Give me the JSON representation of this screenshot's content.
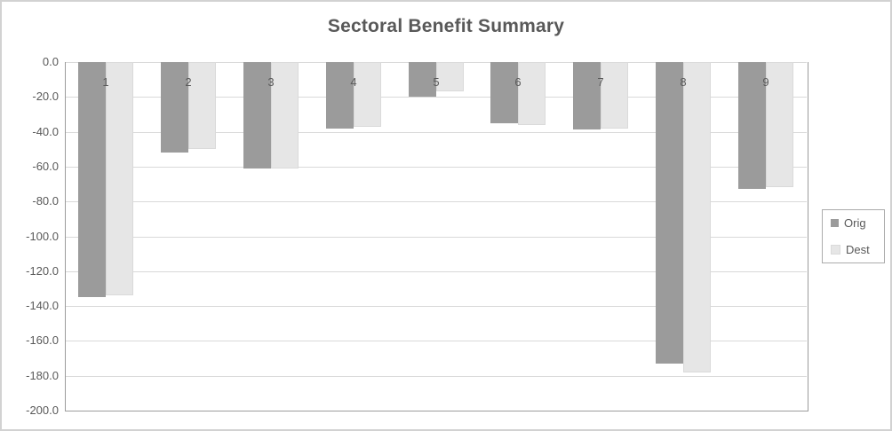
{
  "chart_data": {
    "type": "bar",
    "title": "Sectoral Benefit Summary",
    "categories": [
      "1",
      "2",
      "3",
      "4",
      "5",
      "6",
      "7",
      "8",
      "9"
    ],
    "series": [
      {
        "name": "Orig",
        "color": "#9b9b9b",
        "values": [
          -135,
          -52,
          -61,
          -38,
          -20,
          -35,
          -38.5,
          -173,
          -73
        ]
      },
      {
        "name": "Dest",
        "color": "#e6e6e6",
        "values": [
          -134,
          -50,
          -61,
          -37,
          -17,
          -36,
          -38,
          -178,
          -72
        ]
      }
    ],
    "xlabel": "",
    "ylabel": "",
    "ylim": [
      -200,
      0
    ],
    "ytick_step": 20,
    "ytick_labels": [
      "0.0",
      "-20.0",
      "-40.0",
      "-60.0",
      "-80.0",
      "-100.0",
      "-120.0",
      "-140.0",
      "-160.0",
      "-180.0",
      "-200.0"
    ],
    "grid": true,
    "legend_position": "right",
    "colors": {
      "title_text": "#595959",
      "axis_text": "#595959",
      "gridline": "#d9d9d9",
      "axis_line": "#9c9c9c",
      "frame_border": "#d2d2d2",
      "legend_border": "#ababab"
    }
  }
}
